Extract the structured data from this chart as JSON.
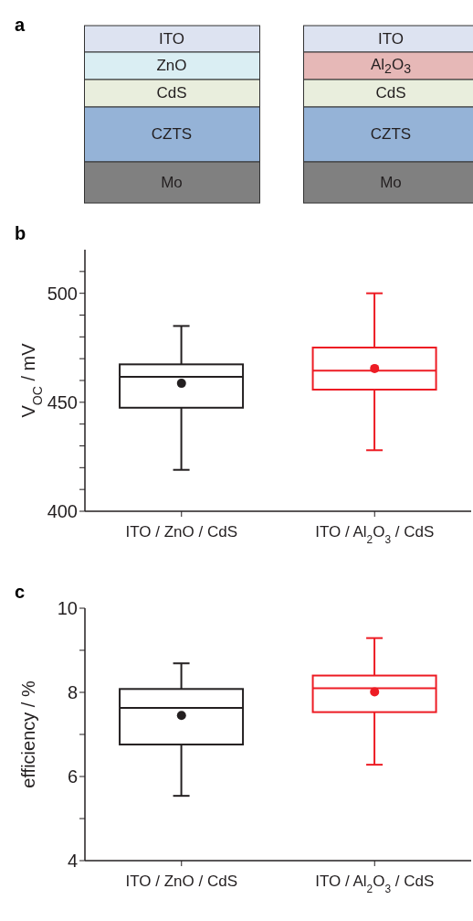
{
  "chart_data": [
    {
      "type": "other",
      "title": "a",
      "annotations": [
        "ITO",
        "ZnO",
        "CdS",
        "CZTS",
        "Mo",
        "ITO",
        "Al$_{2}$O$_{3}$",
        "CdS",
        "CZTS",
        "Mo"
      ]
    },
    {
      "type": "box",
      "title": "b",
      "ylabel": "V$_{OC}$ / mV",
      "categories": [
        "ITO / ZnO / CdS",
        "ITO / Al$_{2}$O$_{3}$ / CdS"
      ],
      "colors": [
        "#231f20",
        "#ed1c24"
      ],
      "boxes": [
        {
          "low": 419,
          "q1": 447.5,
          "median": 461.7,
          "q3": 467.4,
          "high": 485,
          "mean": 458.7
        },
        {
          "low": 428,
          "q1": 455.8,
          "median": 464.5,
          "q3": 475.1,
          "high": 500,
          "mean": 465.5
        }
      ],
      "ylim": [
        400,
        520
      ],
      "yticks": [
        400,
        {
          "value": 410,
          "label": null
        },
        {
          "value": 420,
          "label": null
        },
        {
          "value": 430,
          "label": null
        },
        {
          "value": 440,
          "label": null
        },
        450,
        {
          "value": 460,
          "label": null
        },
        {
          "value": 470,
          "label": null
        },
        {
          "value": 480,
          "label": null
        },
        {
          "value": 490,
          "label": null
        },
        500,
        {
          "value": 510,
          "label": null
        }
      ]
    },
    {
      "type": "box",
      "title": "c",
      "ylabel": "efficiency / %",
      "categories": [
        "ITO / ZnO / CdS",
        "ITO / Al$_{2}$O$_{3}$ / CdS"
      ],
      "colors": [
        "#231f20",
        "#ed1c24"
      ],
      "boxes": [
        {
          "low": 5.54,
          "q1": 6.76,
          "median": 7.63,
          "q3": 8.08,
          "high": 8.69,
          "mean": 7.45
        },
        {
          "low": 6.28,
          "q1": 7.53,
          "median": 8.1,
          "q3": 8.4,
          "high": 9.29,
          "mean": 8.01
        }
      ],
      "ylim": [
        4,
        10
      ],
      "yticks": [
        4,
        {
          "value": 5,
          "label": null
        },
        6,
        {
          "value": 7,
          "label": null
        },
        8,
        {
          "value": 9,
          "label": null
        },
        10
      ]
    }
  ]
}
